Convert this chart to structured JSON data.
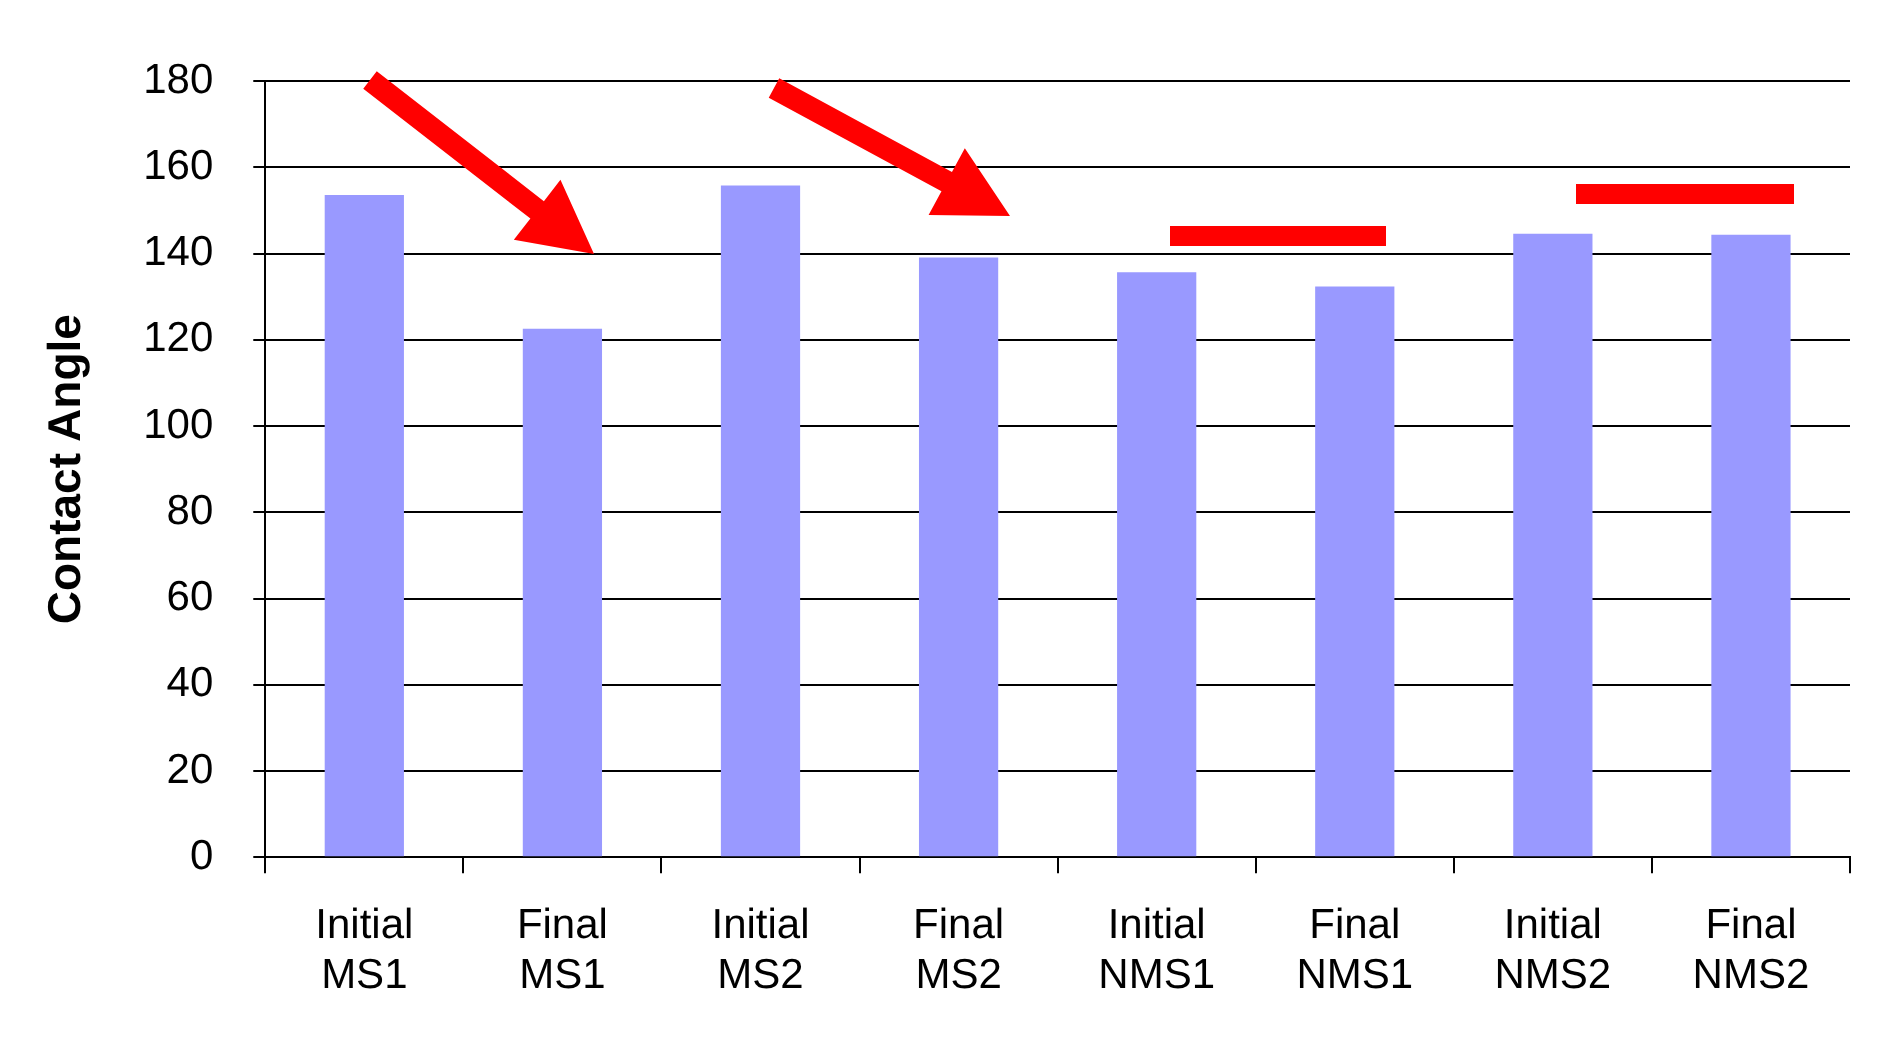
{
  "chart_data": {
    "type": "bar",
    "ylabel": "Contact Angle",
    "categories": [
      "Initial MS1",
      "Final MS1",
      "Initial MS2",
      "Final MS2",
      "Initial NMS1",
      "Final NMS1",
      "Initial NMS2",
      "Final NMS2"
    ],
    "values": [
      153.6,
      122.6,
      155.8,
      139.1,
      135.7,
      132.4,
      144.6,
      144.4
    ],
    "color": "#9999ff",
    "ylim": [
      0,
      180
    ],
    "yticks": [
      0,
      20,
      40,
      60,
      80,
      100,
      120,
      140,
      160,
      180
    ],
    "grid": "y",
    "legend": false
  }
}
